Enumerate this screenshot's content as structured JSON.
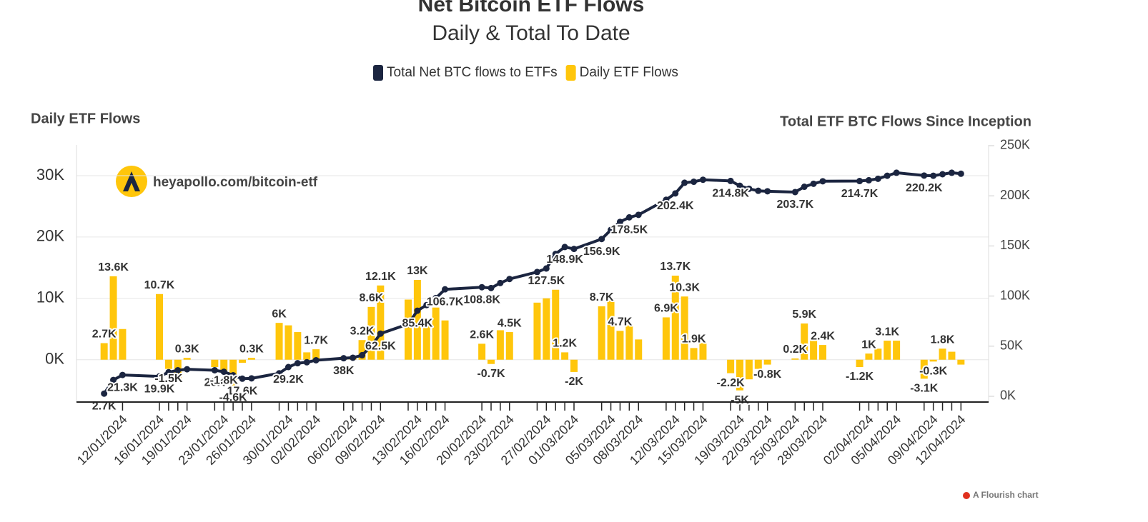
{
  "chart_data": {
    "type": "bar+line",
    "title": "Net Bitcoin ETF Flows",
    "subtitle": "Daily & Total To Date",
    "y_label": "Daily ETF Flows",
    "y2_label": "Total ETF BTC Flows Since Inception",
    "watermark": "heyapollo.com/bitcoin-etf",
    "credit": "A Flourish chart",
    "x": [
      "10/01/2024",
      "11/01/2024",
      "12/01/2024",
      "16/01/2024",
      "17/01/2024",
      "18/01/2024",
      "19/01/2024",
      "22/01/2024",
      "23/01/2024",
      "24/01/2024",
      "25/01/2024",
      "26/01/2024",
      "29/01/2024",
      "30/01/2024",
      "31/01/2024",
      "01/02/2024",
      "02/02/2024",
      "05/02/2024",
      "06/02/2024",
      "07/02/2024",
      "08/02/2024",
      "09/02/2024",
      "12/02/2024",
      "13/02/2024",
      "14/02/2024",
      "15/02/2024",
      "16/02/2024",
      "20/02/2024",
      "21/02/2024",
      "22/02/2024",
      "23/02/2024",
      "26/02/2024",
      "27/02/2024",
      "28/02/2024",
      "29/02/2024",
      "01/03/2024",
      "04/03/2024",
      "05/03/2024",
      "06/03/2024",
      "07/03/2024",
      "08/03/2024",
      "11/03/2024",
      "12/03/2024",
      "13/03/2024",
      "14/03/2024",
      "15/03/2024",
      "18/03/2024",
      "19/03/2024",
      "20/03/2024",
      "21/03/2024",
      "22/03/2024",
      "25/03/2024",
      "26/03/2024",
      "27/03/2024",
      "28/03/2024",
      "01/04/2024",
      "02/04/2024",
      "03/04/2024",
      "04/04/2024",
      "05/04/2024",
      "08/04/2024",
      "09/04/2024",
      "10/04/2024",
      "11/04/2024",
      "12/04/2024"
    ],
    "xlim": [
      "07/01/2024",
      "15/04/2024"
    ],
    "xticks": [
      "12/01/2024",
      "16/01/2024",
      "19/01/2024",
      "23/01/2024",
      "26/01/2024",
      "30/01/2024",
      "02/02/2024",
      "06/02/2024",
      "09/02/2024",
      "13/02/2024",
      "16/02/2024",
      "20/02/2024",
      "23/02/2024",
      "27/02/2024",
      "01/03/2024",
      "05/03/2024",
      "08/03/2024",
      "12/03/2024",
      "15/03/2024",
      "19/03/2024",
      "22/03/2024",
      "25/03/2024",
      "28/03/2024",
      "02/04/2024",
      "05/04/2024",
      "09/04/2024",
      "12/04/2024"
    ],
    "ylim": [
      -6900,
      35000
    ],
    "yticks": [
      {
        "value": 0,
        "label": "0K"
      },
      {
        "value": 10000,
        "label": "10K"
      },
      {
        "value": 20000,
        "label": "20K"
      },
      {
        "value": 30000,
        "label": "30K"
      }
    ],
    "y2lim": [
      -5700,
      250700
    ],
    "y2ticks": [
      {
        "value": 0,
        "label": "0K"
      },
      {
        "value": 50000,
        "label": "50K"
      },
      {
        "value": 100000,
        "label": "100K"
      },
      {
        "value": 150000,
        "label": "150K"
      },
      {
        "value": 200000,
        "label": "200K"
      },
      {
        "value": 250000,
        "label": "250K"
      }
    ],
    "grid": true,
    "series": [
      {
        "name": "Total Net BTC flows to ETFs",
        "type": "line",
        "axis": "y2",
        "color": "#1b2540",
        "values": [
          2700,
          16300,
          21300,
          19900,
          24000,
          26000,
          27000,
          26000,
          24500,
          21000,
          17600,
          17900,
          23000,
          29200,
          33000,
          34000,
          36000,
          38000,
          38500,
          41000,
          50000,
          62500,
          72000,
          85400,
          91000,
          98000,
          106700,
          108800,
          108000,
          113000,
          117000,
          124000,
          127500,
          142000,
          148900,
          147000,
          156900,
          166000,
          174000,
          178500,
          181000,
          196000,
          202400,
          213000,
          214000,
          216000,
          214800,
          210000,
          207000,
          205000,
          204500,
          203700,
          209000,
          212000,
          214500,
          214700,
          215500,
          217000,
          220000,
          223000,
          220200,
          220000,
          221500,
          223000,
          222000
        ],
        "value_labels": [
          "2.7K",
          null,
          "21.3K",
          "19.9K",
          null,
          null,
          null,
          "26K",
          null,
          null,
          "17.6K",
          null,
          null,
          "29.2K",
          null,
          null,
          null,
          "38K",
          null,
          null,
          null,
          "62.5K",
          null,
          "85.4K",
          null,
          null,
          "106.7K",
          "108.8K",
          null,
          null,
          null,
          null,
          "127.5K",
          null,
          "148.9K",
          null,
          "156.9K",
          null,
          null,
          "178.5K",
          null,
          null,
          "202.4K",
          null,
          null,
          null,
          "214.8K",
          null,
          null,
          null,
          null,
          "203.7K",
          null,
          null,
          null,
          "214.7K",
          null,
          null,
          null,
          null,
          "220.2K",
          null,
          null,
          null,
          null
        ]
      },
      {
        "name": "Daily ETF Flows",
        "type": "bar",
        "axis": "y",
        "color": "#ffc60b",
        "values": [
          2700,
          13600,
          5000,
          10700,
          -1500,
          -3000,
          300,
          -1200,
          -1800,
          -4600,
          -500,
          300,
          6000,
          5600,
          4500,
          1200,
          1700,
          500,
          400,
          3200,
          8600,
          12100,
          9800,
          13000,
          5500,
          8500,
          6400,
          2600,
          -700,
          4800,
          4500,
          9300,
          10000,
          11400,
          1200,
          -2000,
          8700,
          9600,
          4700,
          5700,
          3300,
          6900,
          13700,
          10300,
          1900,
          2700,
          -2200,
          -5000,
          -3200,
          -1500,
          -800,
          200,
          5900,
          3200,
          2400,
          -1200,
          1000,
          1800,
          3100,
          3100,
          -3100,
          -300,
          1800,
          1300,
          -800
        ],
        "value_labels": [
          "2.7K",
          "13.6K",
          null,
          "10.7K",
          "-1.5K",
          null,
          "0.3K",
          null,
          "-1.8K",
          "-4.6K",
          null,
          "0.3K",
          "6K",
          null,
          null,
          null,
          "1.7K",
          null,
          null,
          "3.2K",
          "8.6K",
          "12.1K",
          null,
          "13K",
          null,
          null,
          null,
          "2.6K",
          "-0.7K",
          null,
          "4.5K",
          null,
          null,
          null,
          "1.2K",
          "-2K",
          "8.7K",
          null,
          "4.7K",
          null,
          null,
          "6.9K",
          "13.7K",
          "10.3K",
          "1.9K",
          null,
          "-2.2K",
          "-5K",
          null,
          null,
          "-0.8K",
          "0.2K",
          "5.9K",
          null,
          "2.4K",
          "-1.2K",
          "1K",
          null,
          "3.1K",
          null,
          "-3.1K",
          "-0.3K",
          "1.8K",
          null,
          null
        ]
      }
    ]
  }
}
